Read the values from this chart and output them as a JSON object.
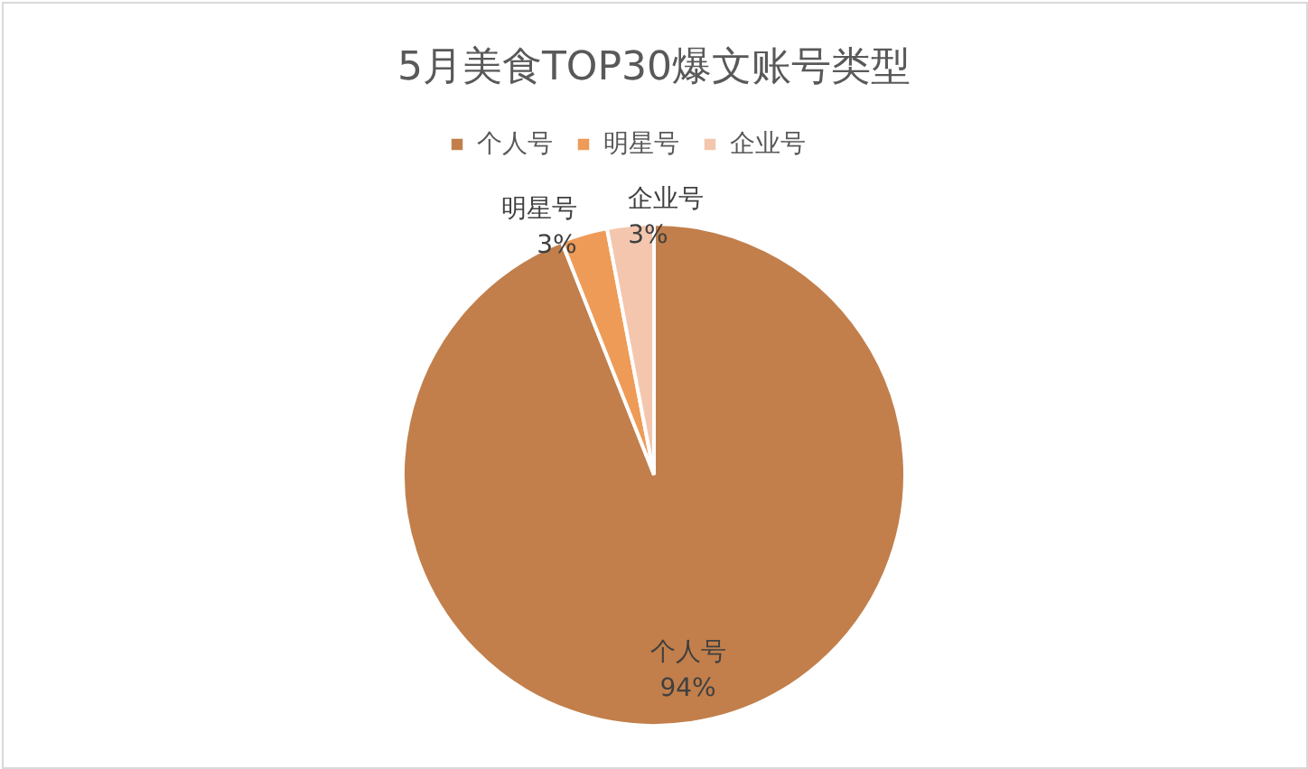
{
  "chart_data": {
    "type": "pie",
    "title": "5月美食TOP30爆文账号类型",
    "categories": [
      "个人号",
      "明星号",
      "企业号"
    ],
    "values": [
      94,
      3,
      3
    ],
    "colors": [
      "#c27f4b",
      "#ee9b57",
      "#f4c6ae"
    ],
    "value_labels": [
      "94%",
      "3%",
      "3%"
    ],
    "legend": "top"
  }
}
